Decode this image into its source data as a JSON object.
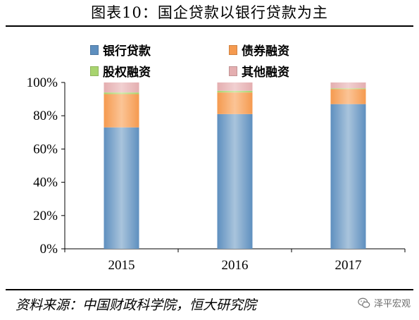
{
  "title": "图表10：国企贷款以银行贷款为主",
  "source": "资料来源：中国财政科学院，恒大研究院",
  "watermark": {
    "text": "泽平宏观",
    "icon": "wechat-icon"
  },
  "colors": {
    "bank_loan": "#5e8fbf",
    "bond": "#f59a4f",
    "equity": "#a8d46f",
    "other": "#e4aeb0"
  },
  "chart_data": {
    "type": "bar",
    "stacked": true,
    "categories": [
      "2015",
      "2016",
      "2017"
    ],
    "series": [
      {
        "name": "银行贷款",
        "key": "bank_loan",
        "values": [
          73,
          81,
          87
        ]
      },
      {
        "name": "债券融资",
        "key": "bond",
        "values": [
          20,
          13,
          9
        ]
      },
      {
        "name": "股权融资",
        "key": "equity",
        "values": [
          1,
          1,
          0.5
        ]
      },
      {
        "name": "其他融资",
        "key": "other",
        "values": [
          6,
          5,
          3.5
        ]
      }
    ],
    "ylim": [
      0,
      100
    ],
    "yticks": [
      "0%",
      "20%",
      "40%",
      "60%",
      "80%",
      "100%"
    ],
    "grid": false,
    "legend_position": "top"
  }
}
